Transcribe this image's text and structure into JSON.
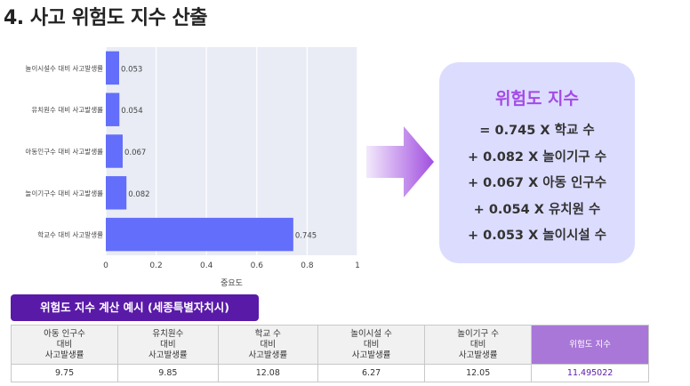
{
  "title": "4. 사고 위험도 지수 산출",
  "chart_data": {
    "type": "bar",
    "orientation": "horizontal",
    "categories": [
      "놀이시설수 대비 사고발생률",
      "유치원수 대비 사고발생률",
      "아동인구수 대비 사고발생률",
      "놀이기구수 대비 사고발생률",
      "학교수 대비 사고발생률"
    ],
    "values": [
      0.053,
      0.054,
      0.067,
      0.082,
      0.745
    ],
    "value_labels": [
      "0.053",
      "0.054",
      "0.067",
      "0.082",
      "0.745"
    ],
    "xlabel": "중요도",
    "ylabel": "",
    "xlim": [
      0,
      1
    ],
    "xticks": [
      "0",
      "0.2",
      "0.4",
      "0.6",
      "0.8",
      "1"
    ],
    "grid": true,
    "bar_color": "#636efa",
    "plot_bg": "#e9ecf5"
  },
  "formula": {
    "title": "위험도 지수",
    "lines": [
      "= 0.745 X 학교 수",
      "+ 0.082 X 놀이기구 수",
      "+ 0.067 X 아동 인구수",
      "+ 0.054 X 유치원 수",
      "+ 0.053 X 놀이시설 수"
    ]
  },
  "example": {
    "label": "위험도 지수 계산 예시 (세종특별자치시)",
    "headers": [
      "아동 인구수\n대비\n사고발생률",
      "유치원수\n대비\n사고발생률",
      "학교 수\n대비\n사고발생률",
      "놀이시설 수\n대비\n사고발생률",
      "놀이기구 수\n대비\n사고발생률",
      "위험도 지수"
    ],
    "values": [
      "9.75",
      "9.85",
      "12.08",
      "6.27",
      "12.05",
      "11.495022"
    ]
  },
  "colors": {
    "accent": "#a44be6",
    "tag": "#5a1aa8",
    "box": "#dcdcff",
    "result_header": "#a977d8"
  }
}
